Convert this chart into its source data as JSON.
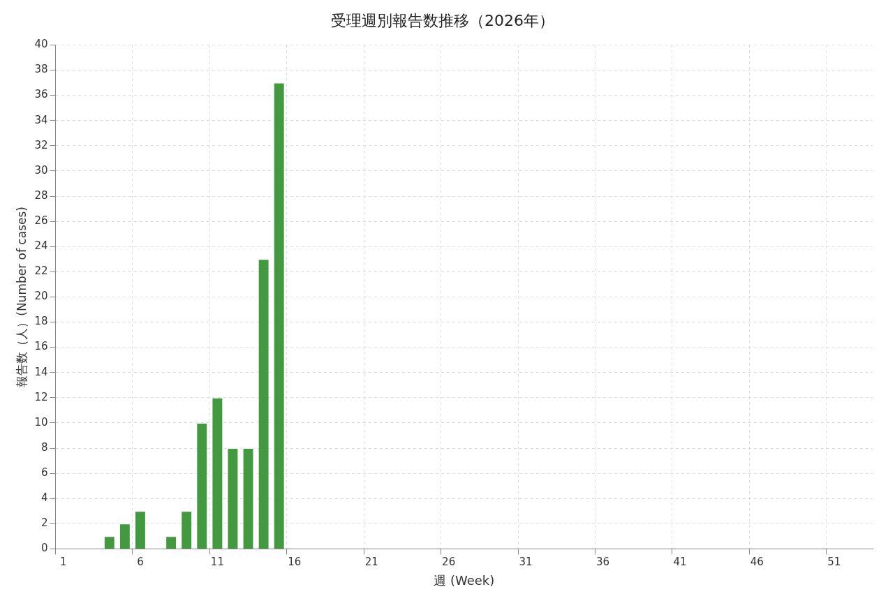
{
  "chart_data": {
    "type": "bar",
    "title": "受理週別報告数推移（2026年）",
    "xlabel": "週 (Week)",
    "ylabel": "報告数（人）(Number of cases)",
    "categories": [
      "1",
      null,
      null,
      null,
      null,
      "6",
      null,
      null,
      null,
      null,
      "11",
      null,
      null,
      null,
      null,
      "16",
      null,
      null,
      null,
      null,
      "21",
      null,
      null,
      null,
      null,
      "26",
      null,
      null,
      null,
      null,
      "31",
      null,
      null,
      null,
      null,
      "36",
      null,
      null,
      null,
      null,
      "41",
      null,
      null,
      null,
      null,
      "46",
      null,
      null,
      null,
      null,
      "51",
      null,
      null
    ],
    "values": [
      0,
      0,
      0,
      1,
      2,
      3,
      0,
      1,
      3,
      10,
      12,
      8,
      8,
      23,
      37,
      0,
      0,
      0,
      0,
      0,
      0,
      0,
      0,
      0,
      0,
      0,
      0,
      0,
      0,
      0,
      0,
      0,
      0,
      0,
      0,
      0,
      0,
      0,
      0,
      0,
      0,
      0,
      0,
      0,
      0,
      0,
      0,
      0,
      0,
      0,
      0,
      0,
      0
    ],
    "color": "#43993f",
    "ylim": [
      0,
      40
    ],
    "yticks": [
      0,
      2,
      4,
      6,
      8,
      10,
      12,
      14,
      16,
      18,
      20,
      22,
      24,
      26,
      28,
      30,
      32,
      34,
      36,
      38,
      40
    ],
    "grid": true,
    "legend": false
  }
}
